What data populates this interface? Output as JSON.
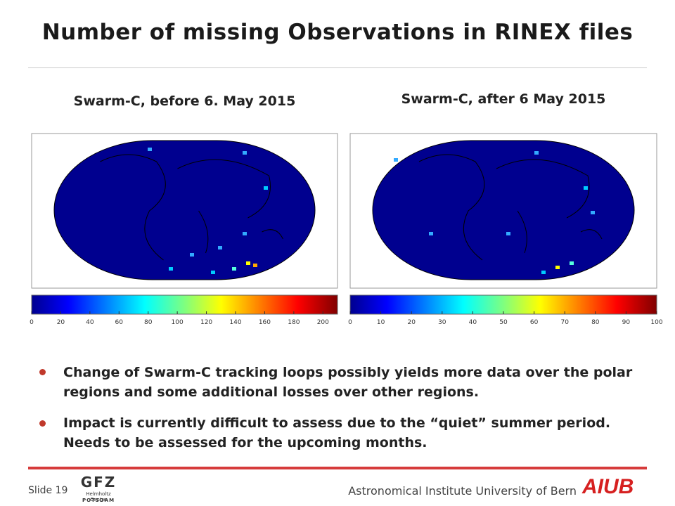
{
  "title": "Number of missing Observations in RINEX files",
  "panels": [
    {
      "title": "Swarm-C, before 6. May 2015",
      "colorbar": {
        "clim": [
          0,
          210
        ],
        "ticks": [
          0,
          20,
          40,
          60,
          80,
          100,
          120,
          140,
          160,
          180,
          200
        ]
      }
    },
    {
      "title": "Swarm-C, after 6 May 2015",
      "colorbar": {
        "clim": [
          0,
          100
        ],
        "ticks": [
          0,
          10,
          20,
          30,
          40,
          50,
          60,
          70,
          80,
          90,
          100
        ]
      }
    }
  ],
  "bullets": [
    "Change of Swarm-C tracking loops possibly yields more data over the polar regions and some additional losses over other regions.",
    "Impact is currently difficult to assess due to the “quiet” summer period. Needs to be assessed for the upcoming months."
  ],
  "footer": {
    "slide": "Slide 19",
    "gfz": "GFZ",
    "gfz_sub1": "Helmholtz Centre",
    "gfz_sub2": "POTSDAM",
    "institute": "Astronomical Institute University of Bern",
    "aiub": "AIUB"
  }
}
